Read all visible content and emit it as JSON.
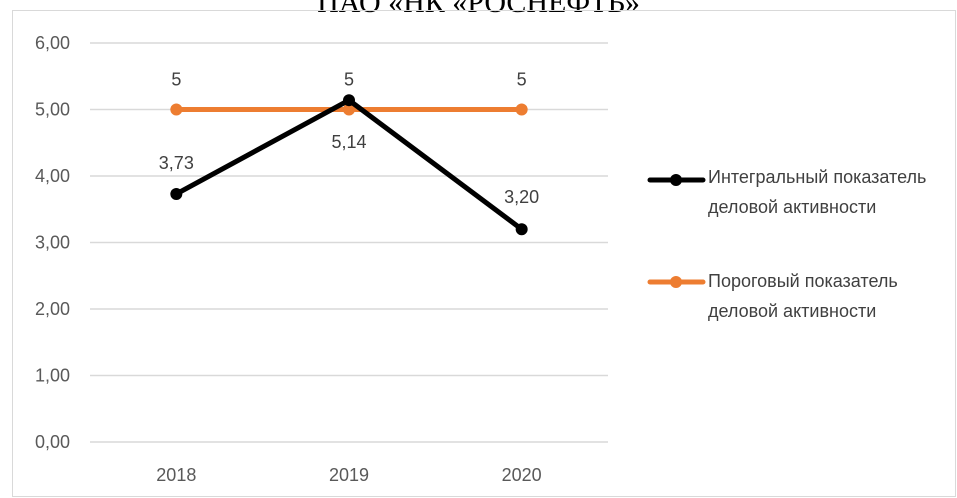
{
  "chart_data": {
    "type": "line",
    "title": "ПАО «НК «РОСНЕФТЬ»",
    "categories": [
      "2018",
      "2019",
      "2020"
    ],
    "ylim": [
      0,
      6
    ],
    "yticks": [
      "0,00",
      "1,00",
      "2,00",
      "3,00",
      "4,00",
      "5,00",
      "6,00"
    ],
    "grid": true,
    "legend_position": "right",
    "series": [
      {
        "name": "Интегральный показатель деловой активности",
        "values": [
          3.73,
          5.14,
          3.2
        ],
        "labels": [
          "3,73",
          "5,14",
          "3,20"
        ],
        "color": "#000000"
      },
      {
        "name": "Пороговый показатель деловой активности",
        "values": [
          5,
          5,
          5
        ],
        "labels": [
          "5",
          "5",
          "5"
        ],
        "color": "#ed7d31"
      }
    ]
  },
  "colors": {
    "gridline": "#d9d9d9",
    "axis_text": "#595959",
    "label_text": "#404040"
  }
}
